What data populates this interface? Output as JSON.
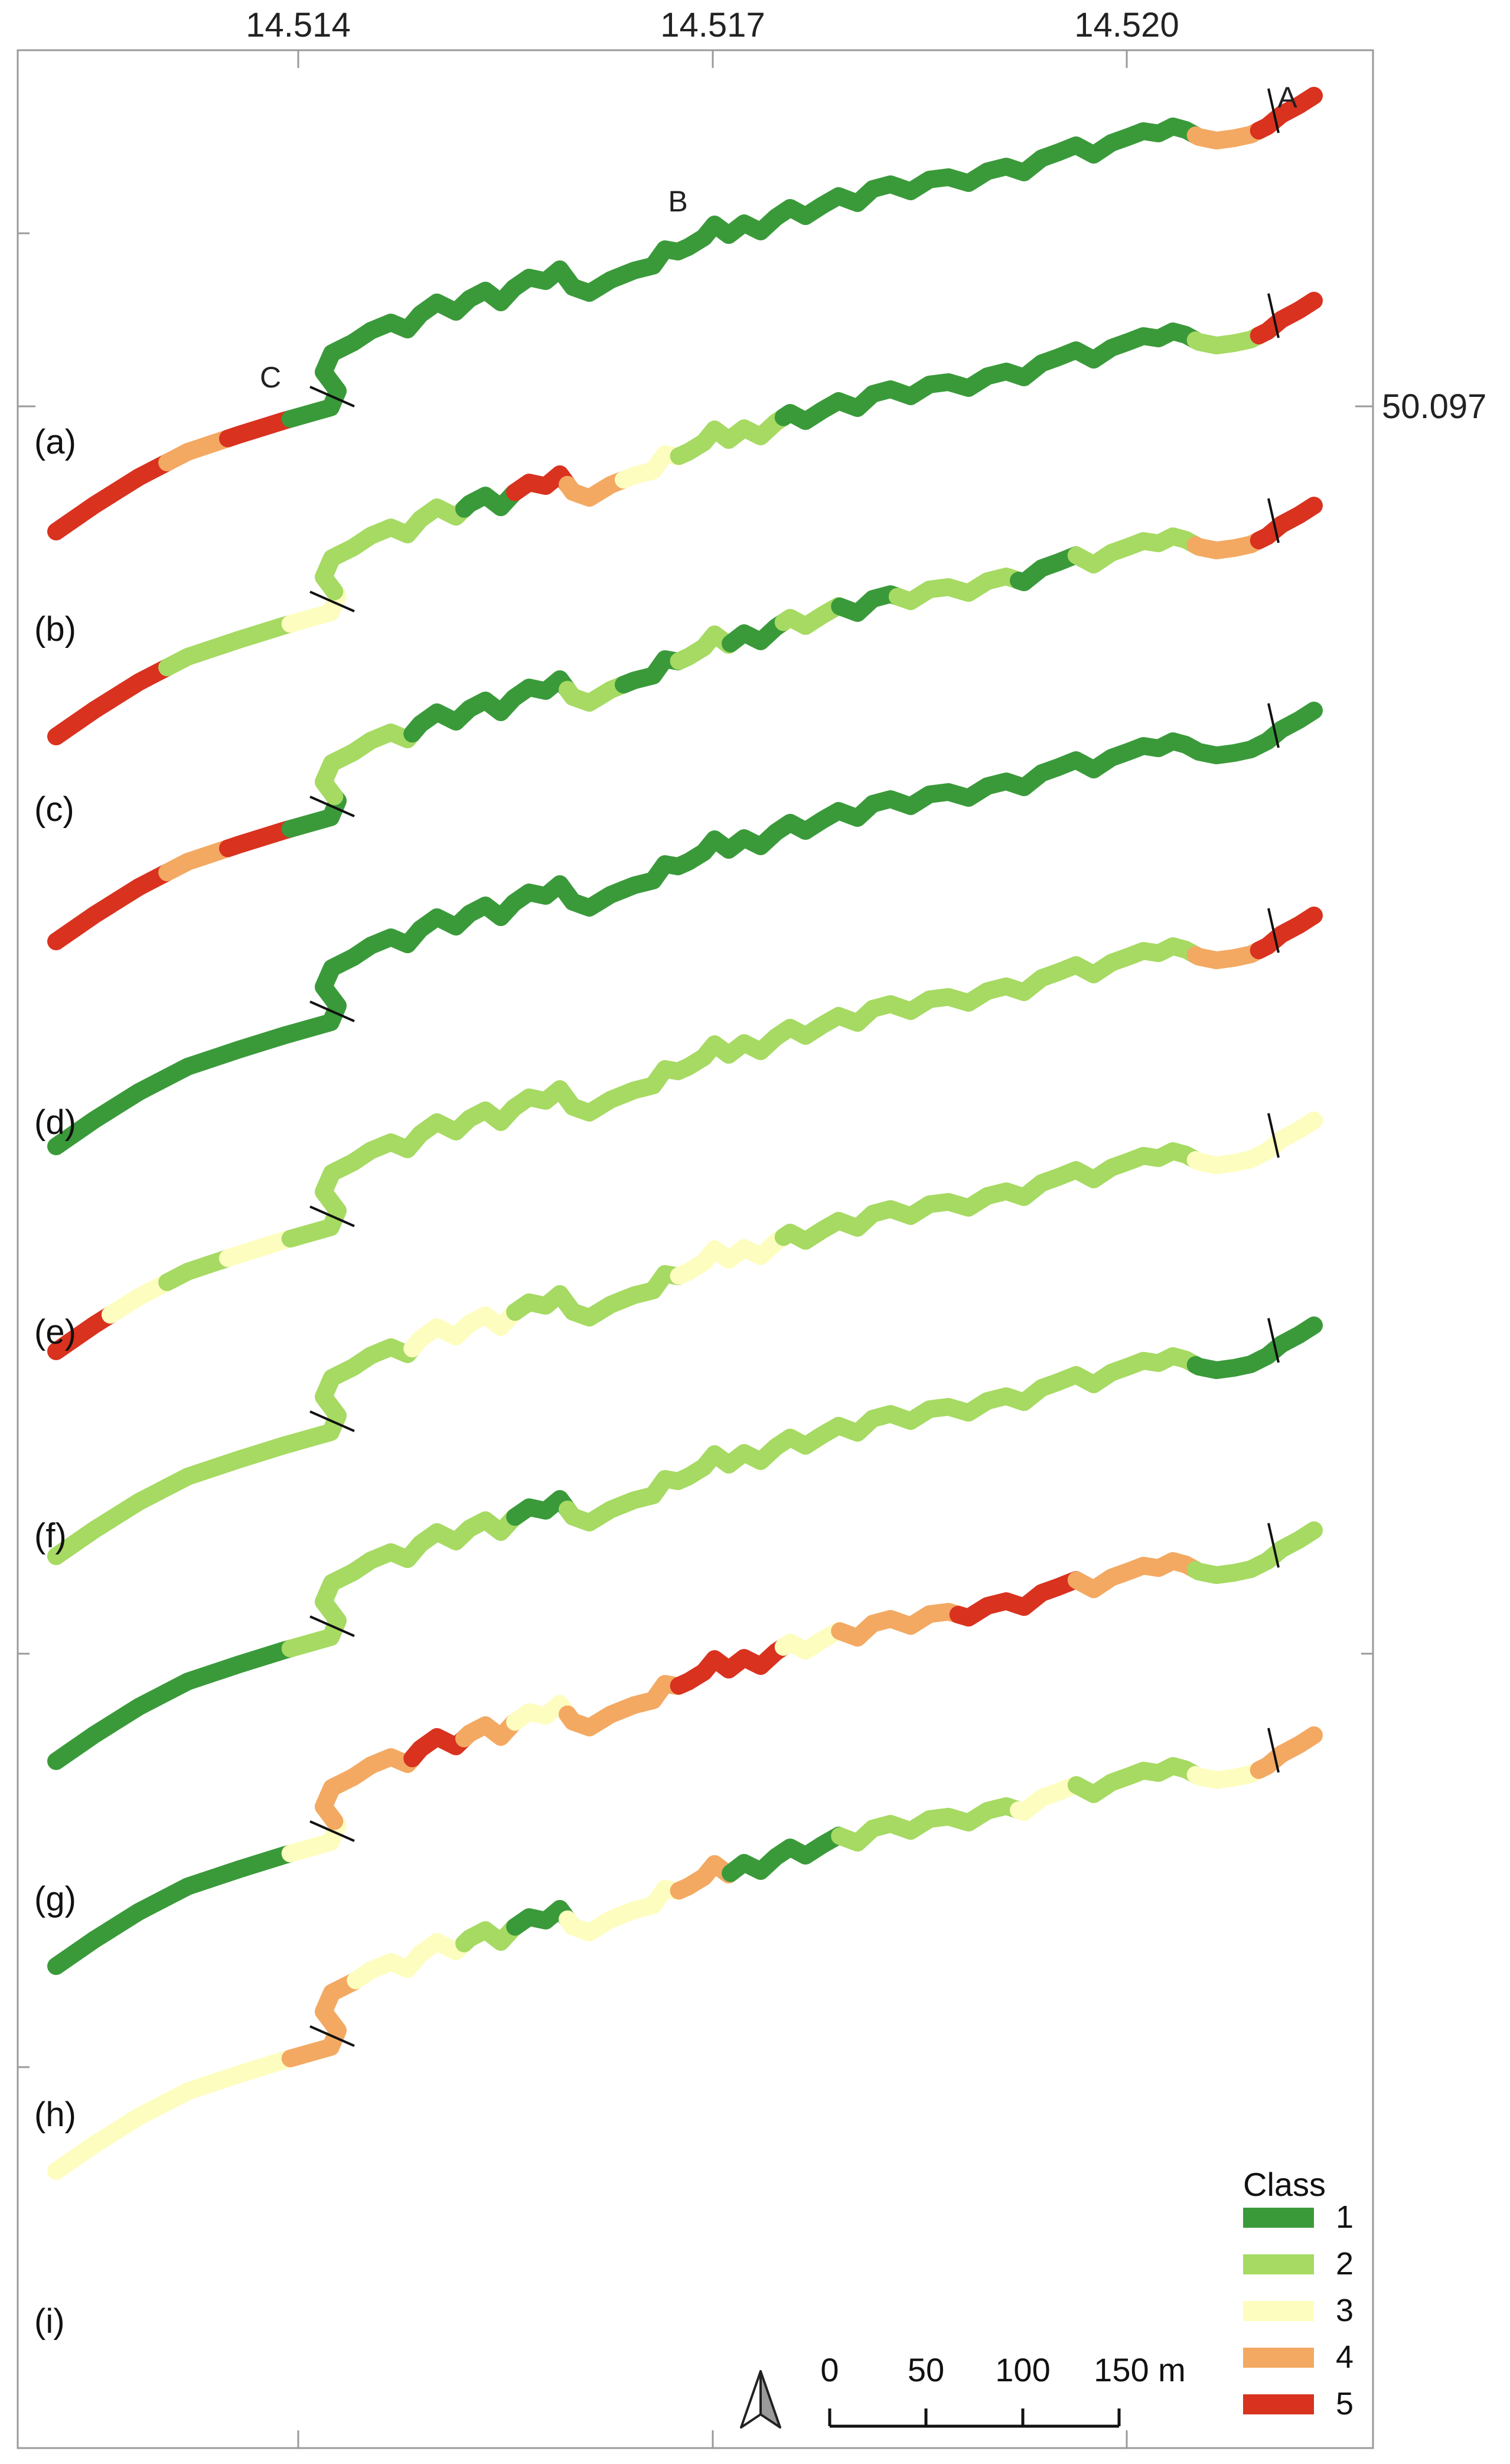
{
  "colors": {
    "class_1": "#3a9a3a",
    "class_2": "#a6da62",
    "class_3": "#fdfdc0",
    "class_4": "#f3a962",
    "class_5": "#d9321f",
    "frame": "#9a9a9a"
  },
  "coordinates": {
    "longitude_labels": [
      "14.514",
      "14.517",
      "14.520"
    ],
    "latitude_labels": [
      "50.097"
    ]
  },
  "point_labels": [
    "A",
    "B",
    "C"
  ],
  "panels": [
    {
      "label": "(a)",
      "classes": [
        5,
        5,
        4,
        5,
        1,
        1,
        1,
        1,
        1,
        1,
        1,
        1,
        1,
        1,
        1,
        1,
        1,
        1,
        1,
        1,
        1,
        4,
        5
      ]
    },
    {
      "label": "(b)",
      "classes": [
        5,
        5,
        2,
        2,
        3,
        2,
        2,
        2,
        1,
        5,
        4,
        3,
        2,
        2,
        1,
        1,
        1,
        1,
        1,
        1,
        1,
        2,
        5
      ]
    },
    {
      "label": "(c)",
      "classes": [
        5,
        5,
        4,
        5,
        1,
        2,
        2,
        1,
        1,
        1,
        2,
        1,
        2,
        1,
        2,
        1,
        2,
        2,
        1,
        2,
        2,
        4,
        5
      ]
    },
    {
      "label": "(d)",
      "classes": [
        1,
        1,
        1,
        1,
        1,
        1,
        1,
        1,
        1,
        1,
        1,
        1,
        1,
        1,
        1,
        1,
        1,
        1,
        1,
        1,
        1,
        1,
        1
      ]
    },
    {
      "label": "(e)",
      "classes": [
        5,
        3,
        2,
        3,
        2,
        2,
        2,
        2,
        2,
        2,
        2,
        2,
        2,
        2,
        2,
        2,
        2,
        2,
        2,
        2,
        2,
        4,
        5
      ]
    },
    {
      "label": "(f)",
      "classes": [
        2,
        2,
        2,
        2,
        2,
        2,
        2,
        3,
        3,
        2,
        2,
        2,
        3,
        3,
        2,
        2,
        2,
        2,
        2,
        2,
        2,
        3,
        3
      ]
    },
    {
      "label": "(g)",
      "classes": [
        1,
        1,
        1,
        1,
        2,
        2,
        2,
        2,
        2,
        1,
        2,
        2,
        2,
        2,
        2,
        2,
        2,
        2,
        2,
        2,
        2,
        1,
        1
      ]
    },
    {
      "label": "(h)",
      "classes": [
        1,
        1,
        1,
        1,
        3,
        4,
        4,
        5,
        4,
        3,
        4,
        4,
        5,
        5,
        3,
        4,
        4,
        5,
        5,
        4,
        4,
        2,
        2
      ]
    },
    {
      "label": "(i)",
      "classes": [
        3,
        3,
        3,
        3,
        4,
        4,
        3,
        3,
        2,
        1,
        3,
        3,
        4,
        1,
        1,
        2,
        2,
        2,
        3,
        2,
        2,
        3,
        4
      ]
    }
  ],
  "legend": {
    "title": "Class",
    "items": [
      {
        "label": "1",
        "color": "#3a9a3a"
      },
      {
        "label": "2",
        "color": "#a6da62"
      },
      {
        "label": "3",
        "color": "#fdfdc0"
      },
      {
        "label": "4",
        "color": "#f3a962"
      },
      {
        "label": "5",
        "color": "#d9321f"
      }
    ]
  },
  "scale_bar": {
    "ticks": [
      "0",
      "50",
      "100",
      "150 m"
    ]
  },
  "north_arrow": "north-arrow-icon"
}
